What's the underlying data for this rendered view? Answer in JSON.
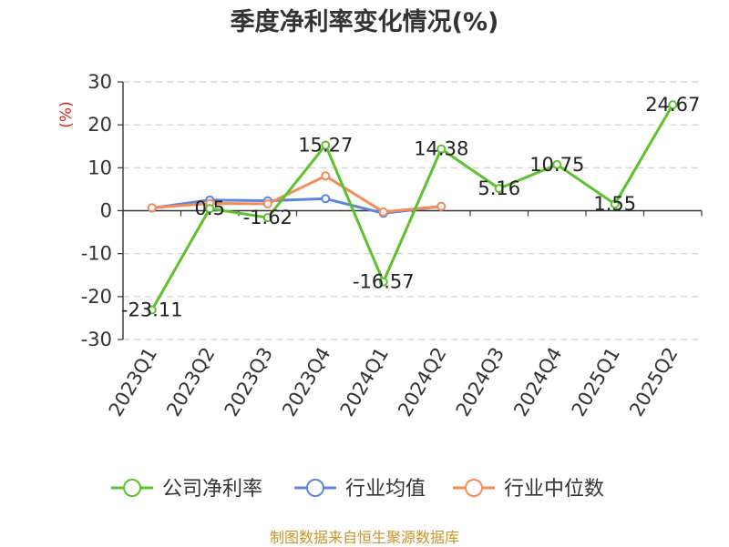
{
  "chart_data": {
    "type": "line",
    "title": "季度净利率变化情况(%)",
    "ylabel": "(%)",
    "ylim": [
      -30,
      30
    ],
    "yticks": [
      30,
      20,
      10,
      0,
      -10,
      -20,
      -30
    ],
    "grid": true,
    "legend_position": "bottom",
    "categories": [
      "2023Q1",
      "2023Q2",
      "2023Q3",
      "2023Q4",
      "2024Q1",
      "2024Q2",
      "2024Q3",
      "2024Q4",
      "2025Q1",
      "2025Q2"
    ],
    "series": [
      {
        "name": "公司净利率",
        "color": "#5cc12c",
        "show_labels": true,
        "values": [
          -23.11,
          0.5,
          -1.62,
          15.27,
          -16.57,
          14.38,
          5.16,
          10.75,
          1.55,
          24.67
        ]
      },
      {
        "name": "行业均值",
        "color": "#5b86e0",
        "show_labels": false,
        "values": [
          0.6,
          2.5,
          2.3,
          2.8,
          -0.6,
          1.0,
          null,
          null,
          null,
          null
        ]
      },
      {
        "name": "行业中位数",
        "color": "#f58b5a",
        "show_labels": false,
        "values": [
          0.7,
          1.7,
          1.6,
          8.1,
          -0.3,
          1.0,
          null,
          null,
          null,
          null
        ]
      }
    ]
  },
  "footer": "制图数据来自恒生聚源数据库"
}
